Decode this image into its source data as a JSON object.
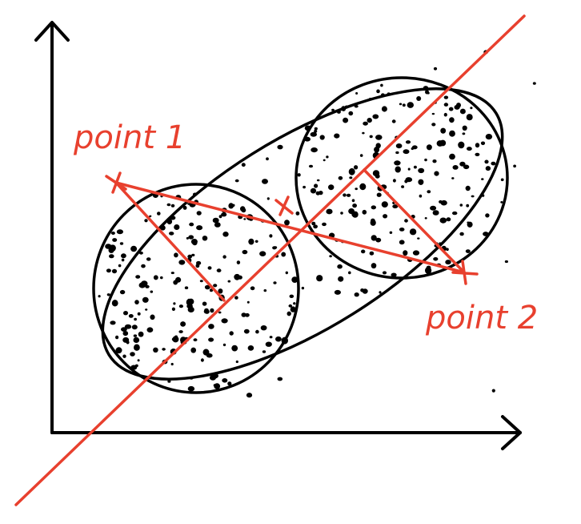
{
  "annotations": [
    {
      "text": "point 1"
    },
    {
      "text": "point 2"
    }
  ]
}
